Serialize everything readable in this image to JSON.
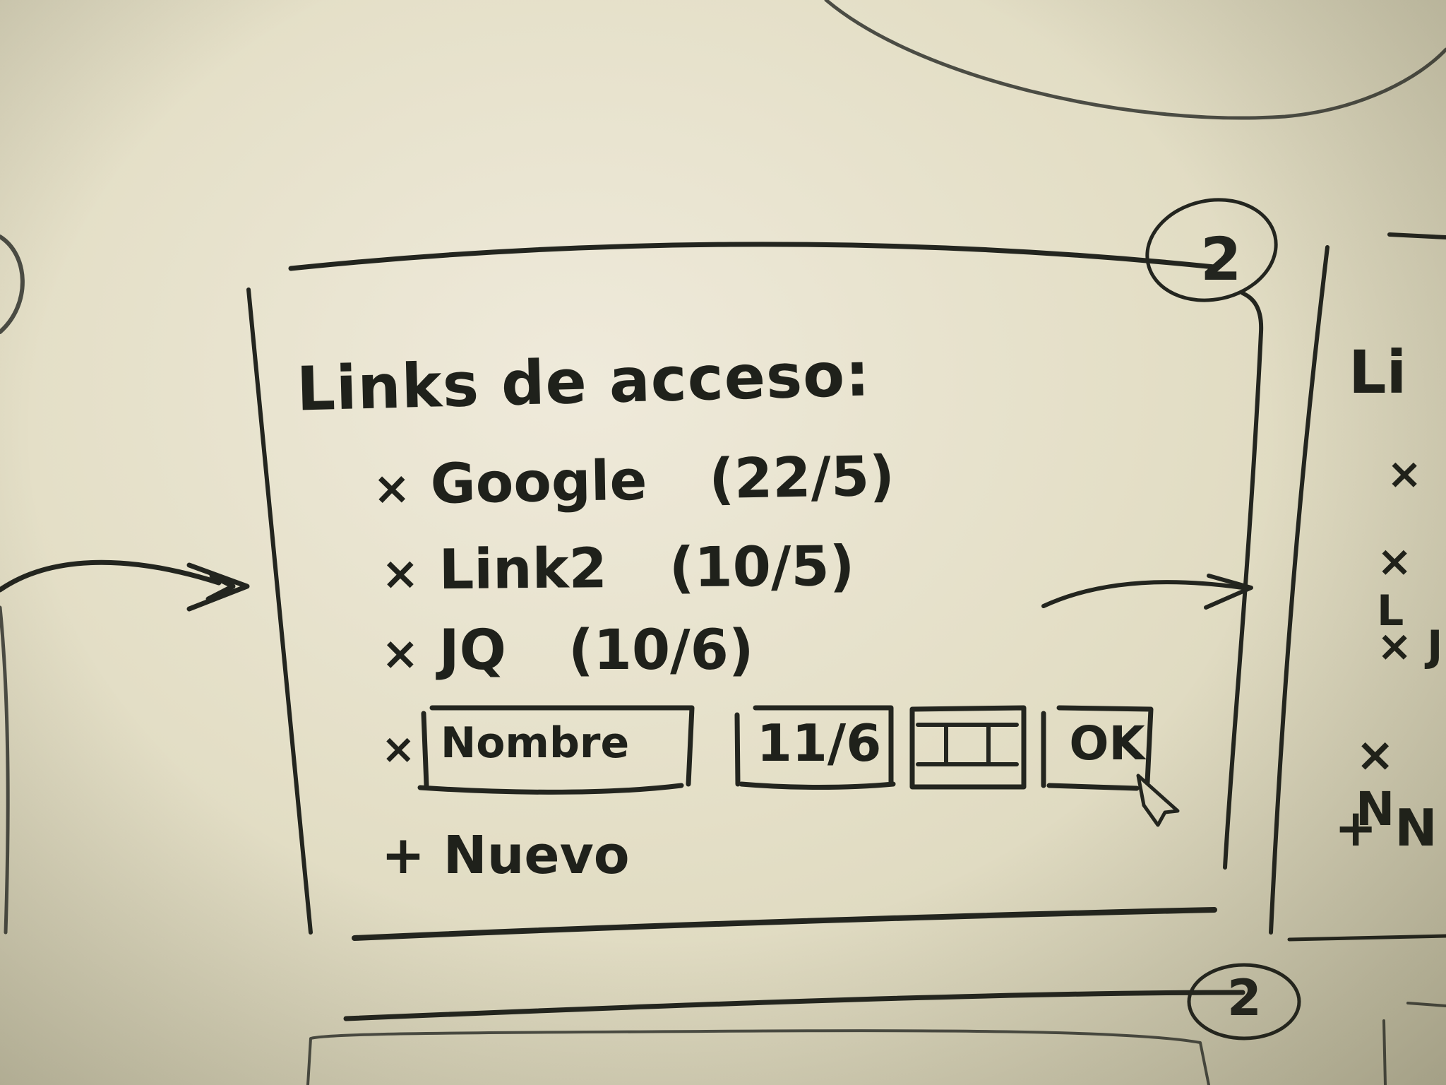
{
  "sketch": {
    "badge_top": "2",
    "badge_bottom": "2",
    "title": "Links de acceso:",
    "links": [
      {
        "bullet": "×",
        "name": "Google",
        "date": "(22/5)"
      },
      {
        "bullet": "×",
        "name": "Link2",
        "date": "(10/5)"
      },
      {
        "bullet": "×",
        "name": "JQ",
        "date": "(10/6)"
      }
    ],
    "form": {
      "bullet": "×",
      "name_placeholder": "Nombre",
      "date_value": "11/6",
      "calendar_icon": "calendar-icon",
      "ok_label": "OK"
    },
    "new_link": "+ Nuevo",
    "right_fragment": {
      "title": "Li",
      "bullets": [
        "×",
        "× L",
        "× J",
        "× N",
        "+ N"
      ]
    }
  }
}
